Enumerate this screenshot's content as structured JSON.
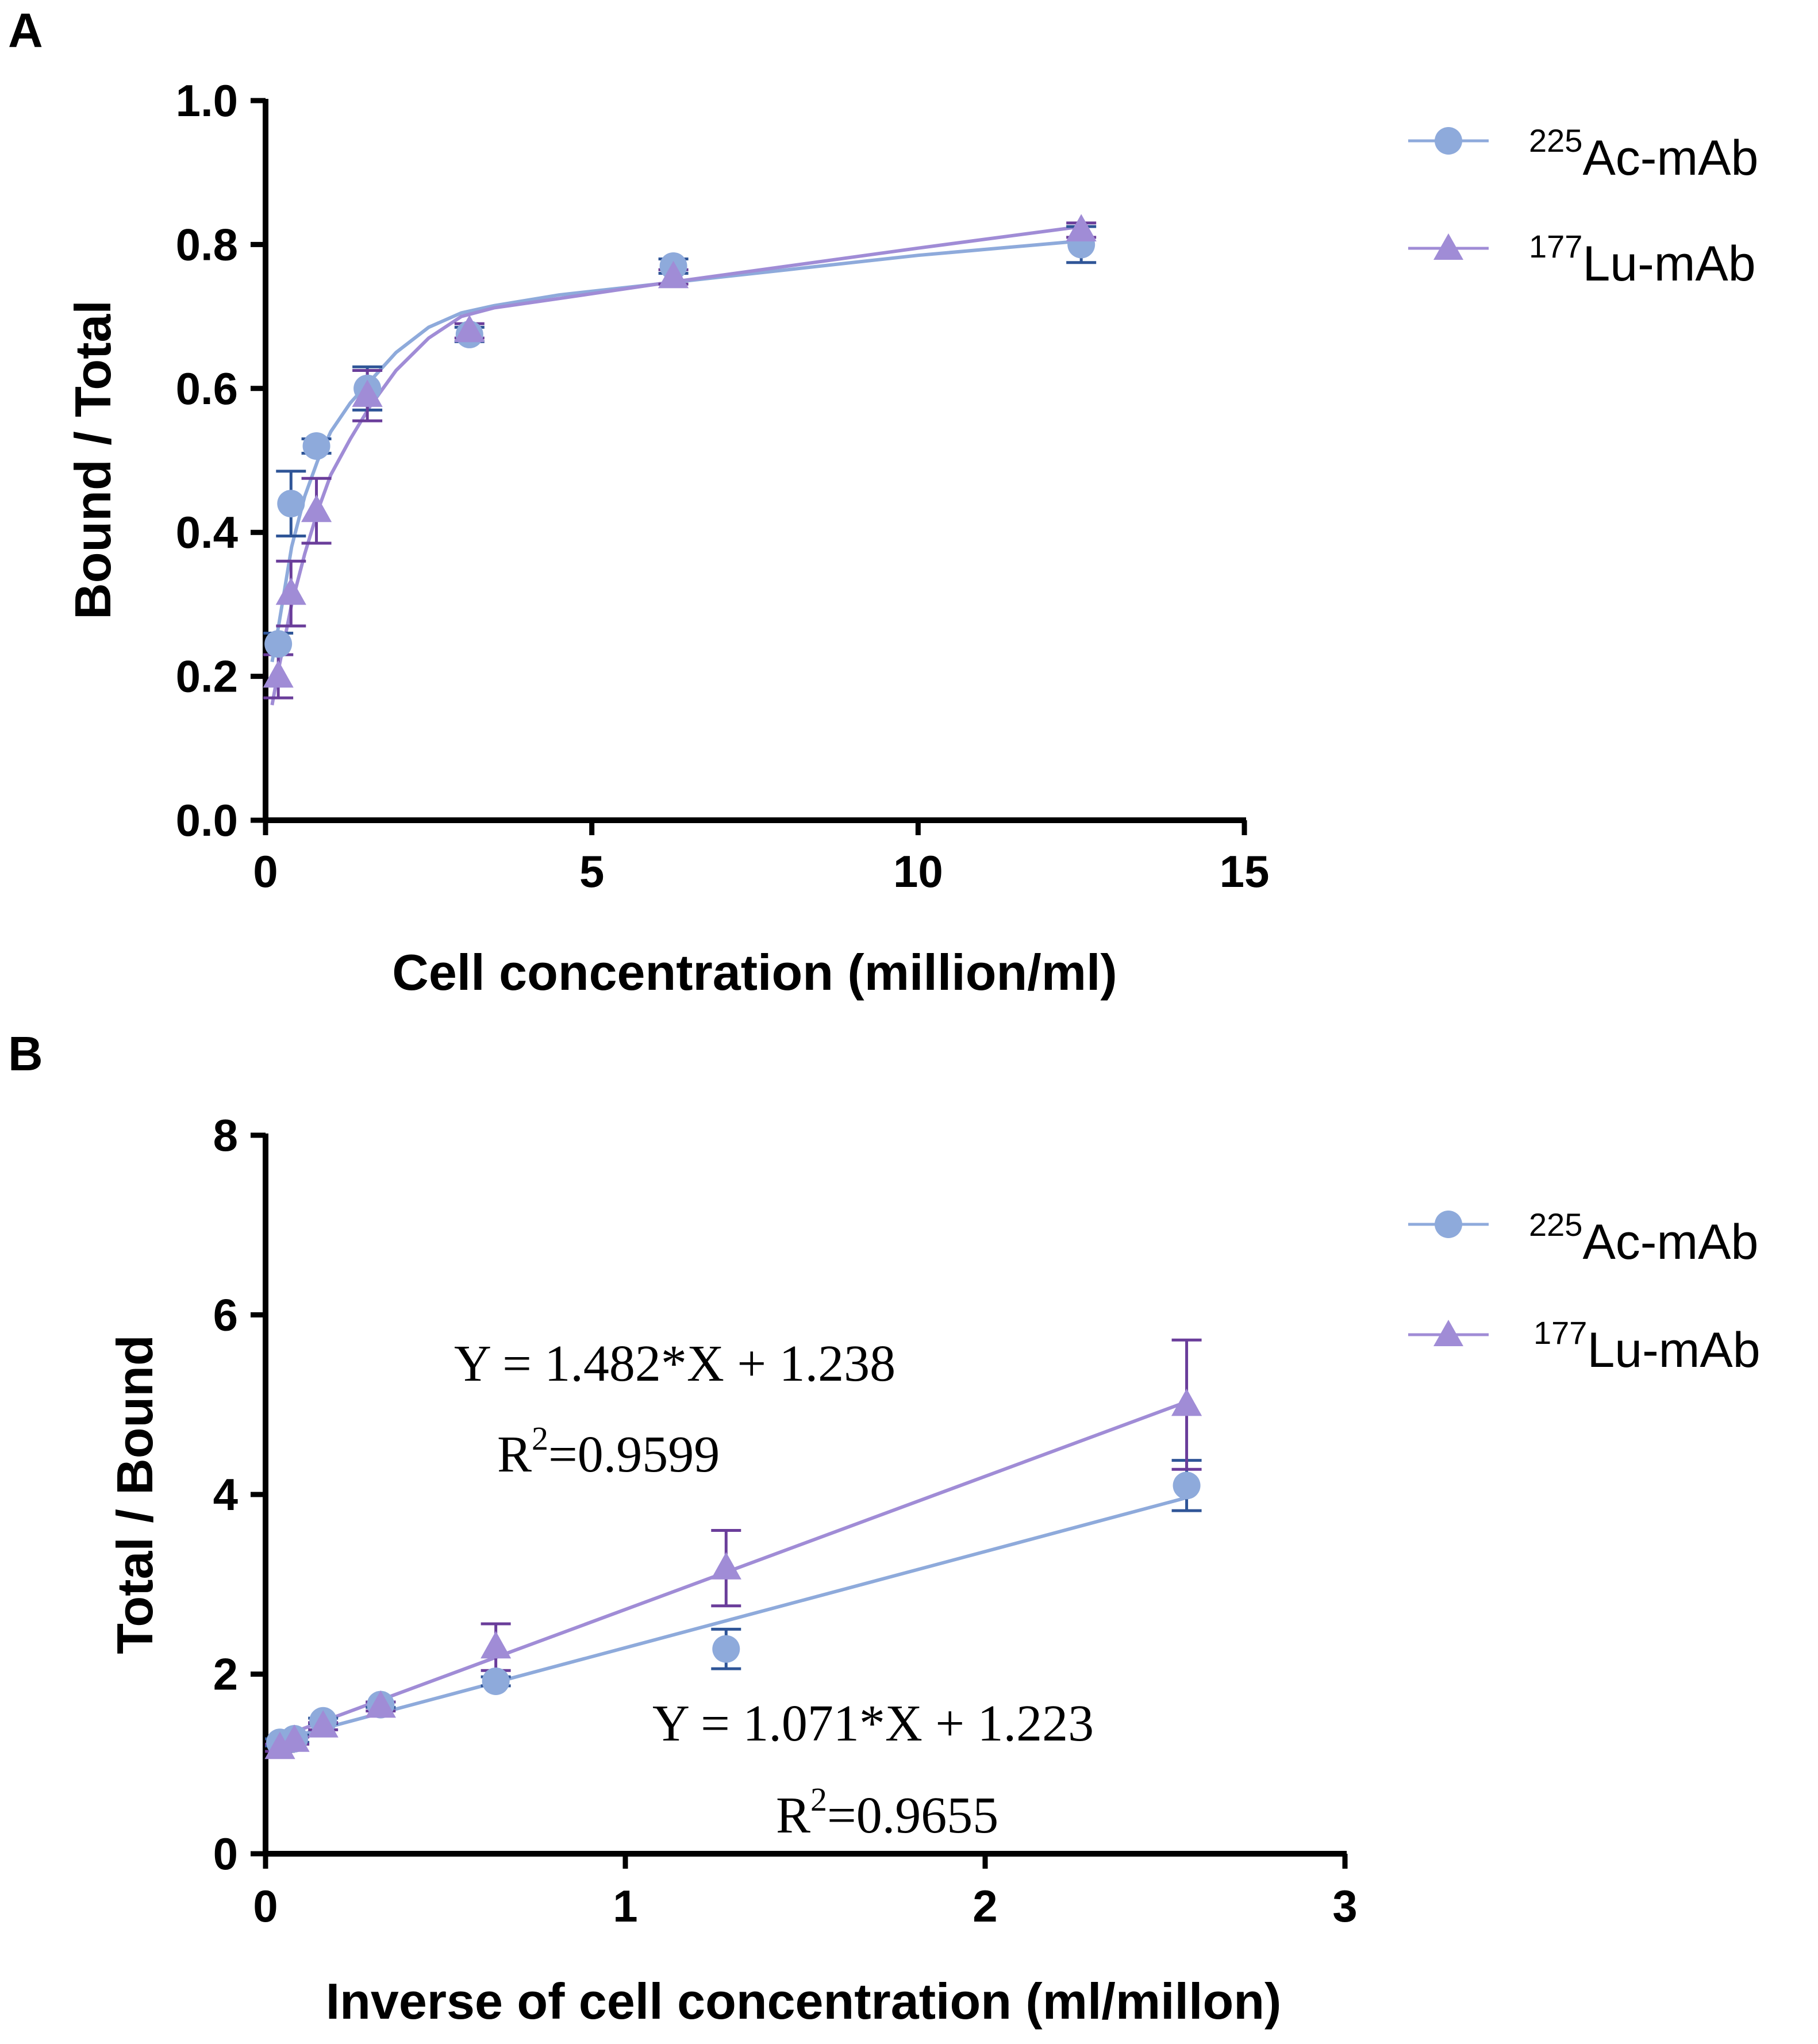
{
  "chart_data": [
    {
      "panel": "A",
      "type": "scatter",
      "title": "",
      "xlabel": "Cell concentration (million/ml)",
      "ylabel": "Bound / Total",
      "xlim": [
        0,
        15
      ],
      "ylim": [
        0,
        1.0
      ],
      "xticks": [
        "0",
        "5",
        "10",
        "15"
      ],
      "yticks": [
        "0.0",
        "0.2",
        "0.4",
        "0.6",
        "0.8",
        "1.0"
      ],
      "legend_position": "right",
      "series": [
        {
          "name_sup": "225",
          "name_main": "Ac-mAb",
          "marker": "circle",
          "color": "#8eaadb",
          "err_color": "#2f5597",
          "x": [
            0.195,
            0.39,
            0.78,
            1.56,
            3.125,
            6.25,
            12.5
          ],
          "y": [
            0.245,
            0.44,
            0.52,
            0.6,
            0.675,
            0.77,
            0.8
          ],
          "err": [
            0.015,
            0.045,
            0.01,
            0.03,
            0.01,
            0.01,
            0.025
          ],
          "fit_x": [
            0.1,
            0.2,
            0.4,
            0.6,
            0.8,
            1.0,
            1.3,
            1.6,
            2.0,
            2.5,
            3.0,
            3.5,
            4.5,
            6.0,
            8.0,
            10.0,
            12.5
          ],
          "fit_y": [
            0.22,
            0.27,
            0.38,
            0.45,
            0.5,
            0.54,
            0.58,
            0.61,
            0.65,
            0.685,
            0.705,
            0.715,
            0.73,
            0.745,
            0.765,
            0.785,
            0.805
          ]
        },
        {
          "name_sup": "177",
          "name_main": "Lu-mAb",
          "marker": "triangle",
          "color": "#a08cd6",
          "err_color": "#6a3d9a",
          "x": [
            0.195,
            0.39,
            0.78,
            1.56,
            3.125,
            6.25,
            12.5
          ],
          "y": [
            0.2,
            0.315,
            0.43,
            0.59,
            0.68,
            0.755,
            0.82
          ],
          "err": [
            0.03,
            0.045,
            0.045,
            0.035,
            0.01,
            0.01,
            0.01
          ],
          "fit_x": [
            0.1,
            0.2,
            0.4,
            0.6,
            0.8,
            1.0,
            1.3,
            1.6,
            2.0,
            2.5,
            3.0,
            3.5,
            4.5,
            6.0,
            8.0,
            10.0,
            12.5
          ],
          "fit_y": [
            0.16,
            0.21,
            0.3,
            0.37,
            0.43,
            0.48,
            0.53,
            0.575,
            0.625,
            0.67,
            0.7,
            0.712,
            0.725,
            0.745,
            0.77,
            0.795,
            0.825
          ]
        }
      ]
    },
    {
      "panel": "B",
      "type": "scatter",
      "title": "",
      "xlabel": "Inverse of cell concentration (ml/millon)",
      "ylabel": "Total / Bound",
      "xlim": [
        0,
        3
      ],
      "ylim": [
        0,
        8
      ],
      "xticks": [
        "0",
        "1",
        "2",
        "3"
      ],
      "yticks": [
        "0",
        "2",
        "4",
        "6",
        "8"
      ],
      "legend_position": "right",
      "series": [
        {
          "name_sup": "225",
          "name_main": "Ac-mAb",
          "marker": "circle",
          "color": "#8eaadb",
          "err_color": "#2f5597",
          "x": [
            0.04,
            0.08,
            0.16,
            0.32,
            0.64,
            1.28,
            2.56
          ],
          "y": [
            1.24,
            1.28,
            1.48,
            1.66,
            1.92,
            2.28,
            4.1
          ],
          "err": [
            0.04,
            0.04,
            0.03,
            0.03,
            0.05,
            0.22,
            0.28
          ],
          "fit": {
            "slope": 1.071,
            "intercept": 1.223,
            "x_range": [
              0.04,
              2.56
            ]
          }
        },
        {
          "name_sup": "177",
          "name_main": "Lu-mAb",
          "marker": "triangle",
          "color": "#a08cd6",
          "err_color": "#6a3d9a",
          "x": [
            0.04,
            0.08,
            0.16,
            0.32,
            0.64,
            1.28,
            2.56
          ],
          "y": [
            1.18,
            1.26,
            1.42,
            1.64,
            2.3,
            3.18,
            5.0
          ],
          "err": [
            0.04,
            0.04,
            0.04,
            0.05,
            0.26,
            0.42,
            0.72
          ],
          "fit": {
            "slope": 1.482,
            "intercept": 1.238,
            "x_range": [
              0.04,
              2.56
            ]
          }
        }
      ],
      "annotations": {
        "lu_equation": "Y = 1.482*X + 1.238",
        "lu_r2_label": "R",
        "lu_r2_sup": "2",
        "lu_r2_value": "=0.9599",
        "ac_equation": "Y = 1.071*X + 1.223",
        "ac_r2_label": "R",
        "ac_r2_sup": "2",
        "ac_r2_value": "=0.9655"
      }
    }
  ]
}
